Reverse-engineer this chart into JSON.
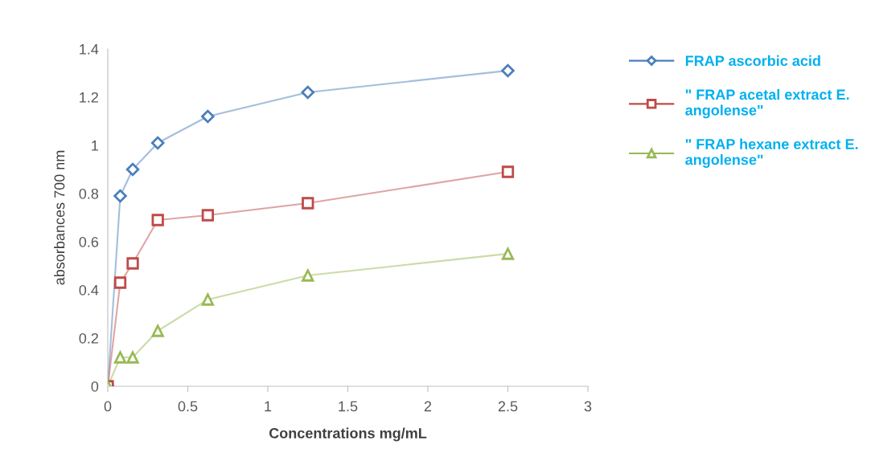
{
  "chart_data": {
    "type": "line",
    "xlabel": "Concentrations mg/mL",
    "ylabel": "absorbances 700 nm",
    "x": [
      0,
      0.078,
      0.156,
      0.3125,
      0.625,
      1.25,
      2.5
    ],
    "series": [
      {
        "name": "FRAP ascorbic acid",
        "color": "#4a7ebb",
        "marker": "diamond",
        "values": [
          0,
          0.79,
          0.9,
          1.01,
          1.12,
          1.22,
          1.31
        ]
      },
      {
        "name": "\" FRAP acetal extract E. angolense\"",
        "color": "#be4b48",
        "marker": "square",
        "values": [
          0,
          0.43,
          0.51,
          0.69,
          0.71,
          0.76,
          0.89
        ]
      },
      {
        "name": "\" FRAP hexane extract E. angolense\"",
        "color": "#98b954",
        "marker": "triangle",
        "values": [
          0,
          0.12,
          0.12,
          0.23,
          0.36,
          0.46,
          0.55
        ]
      }
    ],
    "xlim": [
      0,
      3
    ],
    "xticks": [
      0,
      0.5,
      1,
      1.5,
      2,
      2.5,
      3
    ],
    "ylim": [
      0,
      1.4
    ],
    "yticks": [
      0,
      0.2,
      0.4,
      0.6,
      0.8,
      1,
      1.2,
      1.4
    ],
    "grid": false,
    "legend": "right",
    "line_style": "solid"
  }
}
